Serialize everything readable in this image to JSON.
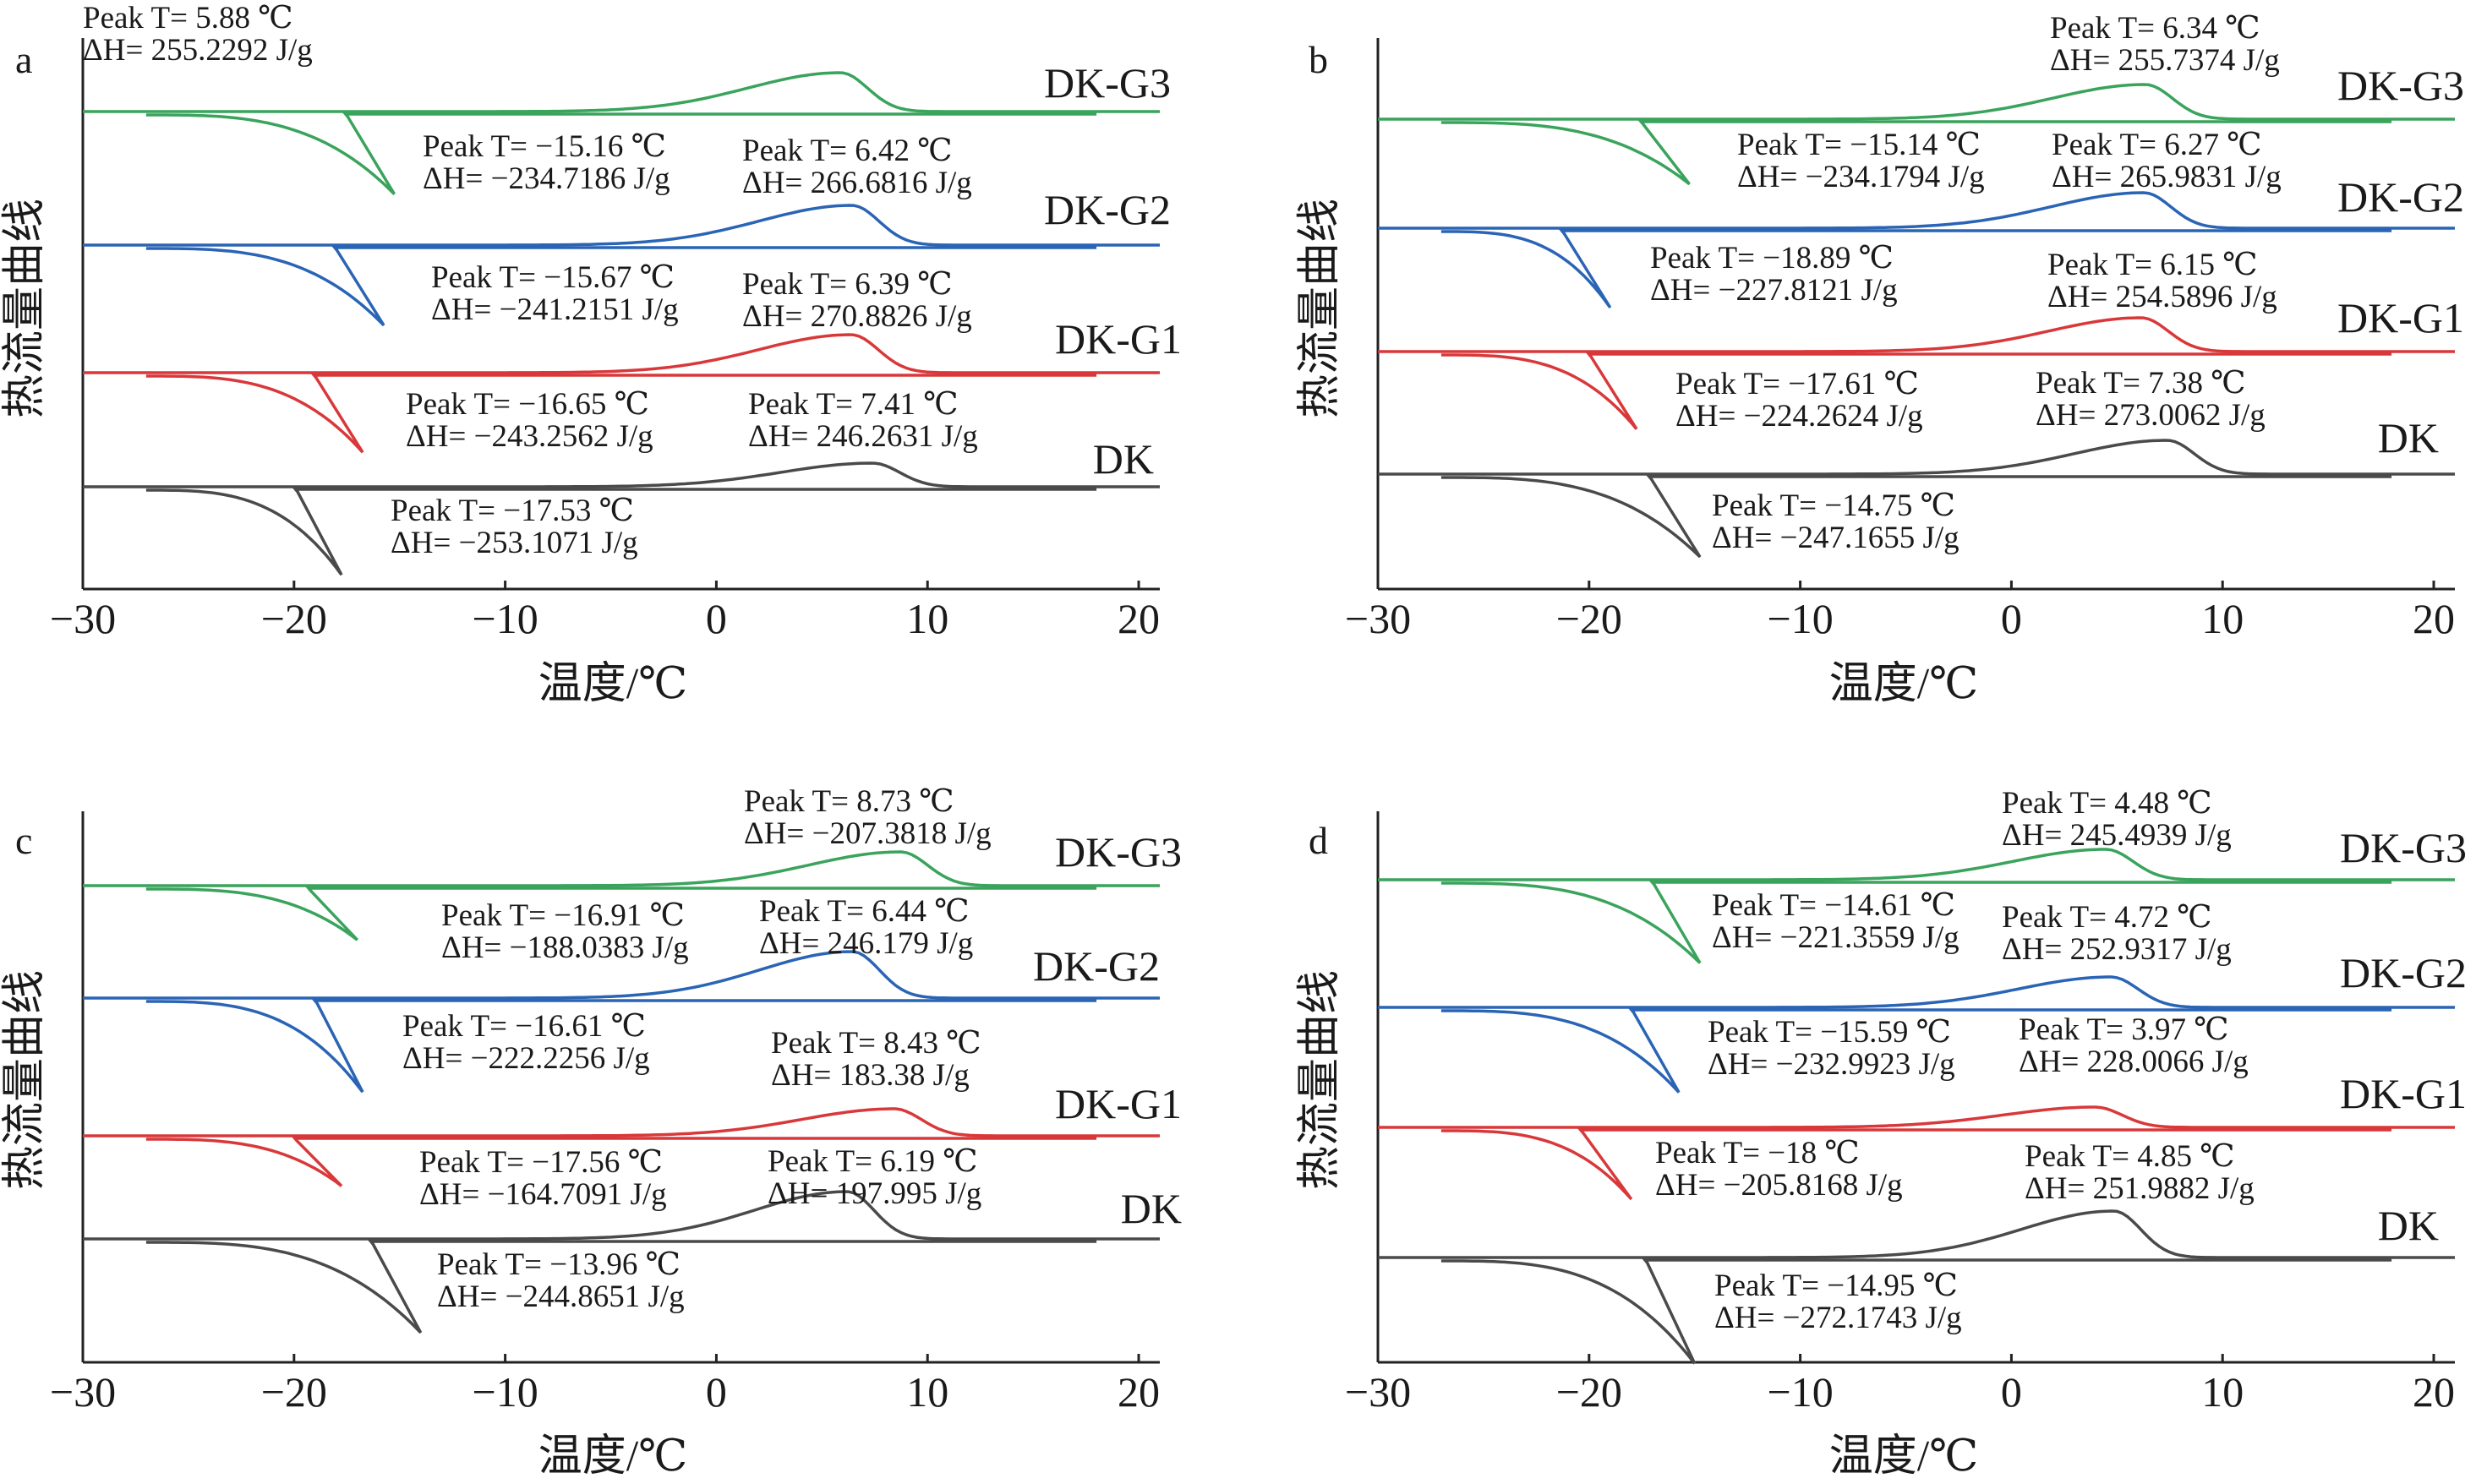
{
  "chart_data": [
    {
      "panel": "a",
      "type": "line",
      "xlabel": "温度/℃",
      "ylabel": "热流量曲线",
      "xlim": [
        -30,
        21
      ],
      "xticks": [
        "−30",
        "−20",
        "−10",
        "0",
        "10",
        "20"
      ],
      "grid": false,
      "series": [
        {
          "name": "DK-G3",
          "color": "#3aa35c",
          "exo": {
            "peak_T": 5.88,
            "label1": "Peak T= 5.88 ℃",
            "label2": "ΔH= 255.2292 J/g"
          },
          "endo": {
            "peak_T": -15.16,
            "label1": "Peak T= −15.16 ℃",
            "label2": "ΔH= −234.7186 J/g"
          }
        },
        {
          "name": "DK-G2",
          "color": "#2a64b5",
          "exo": {
            "peak_T": 6.42,
            "label1": "Peak T= 6.42 ℃",
            "label2": "ΔH= 266.6816 J/g"
          },
          "endo": {
            "peak_T": -15.67,
            "label1": "Peak T= −15.67 ℃",
            "label2": "ΔH= −241.2151 J/g"
          }
        },
        {
          "name": "DK-G1",
          "color": "#d9383a",
          "exo": {
            "peak_T": 6.39,
            "label1": "Peak T= 6.39 ℃",
            "label2": "ΔH= 270.8826 J/g"
          },
          "endo": {
            "peak_T": -16.65,
            "label1": "Peak T= −16.65 ℃",
            "label2": "ΔH= −243.2562 J/g"
          }
        },
        {
          "name": "DK",
          "color": "#4a4a4a",
          "exo": {
            "peak_T": 7.41,
            "label1": "Peak T= 7.41 ℃",
            "label2": "ΔH= 246.2631 J/g"
          },
          "endo": {
            "peak_T": -17.53,
            "label1": "Peak T= −17.53 ℃",
            "label2": "ΔH= −253.1071 J/g"
          }
        }
      ]
    },
    {
      "panel": "b",
      "type": "line",
      "xlabel": "温度/℃",
      "ylabel": "热流量曲线",
      "xlim": [
        -30,
        21
      ],
      "xticks": [
        "−30",
        "−20",
        "−10",
        "0",
        "10",
        "20"
      ],
      "grid": false,
      "series": [
        {
          "name": "DK-G3",
          "color": "#3aa35c",
          "exo": {
            "peak_T": 6.34,
            "label1": "Peak T= 6.34 ℃",
            "label2": "ΔH= 255.7374 J/g"
          },
          "endo": {
            "peak_T": -15.14,
            "label1": "Peak T= −15.14 ℃",
            "label2": "ΔH= −234.1794 J/g"
          }
        },
        {
          "name": "DK-G2",
          "color": "#2a64b5",
          "exo": {
            "peak_T": 6.27,
            "label1": "Peak T= 6.27 ℃",
            "label2": "ΔH= 265.9831 J/g"
          },
          "endo": {
            "peak_T": -18.89,
            "label1": "Peak T= −18.89 ℃",
            "label2": "ΔH= −227.8121 J/g"
          }
        },
        {
          "name": "DK-G1",
          "color": "#d9383a",
          "exo": {
            "peak_T": 6.15,
            "label1": "Peak T= 6.15 ℃",
            "label2": "ΔH= 254.5896 J/g"
          },
          "endo": {
            "peak_T": -17.61,
            "label1": "Peak T= −17.61 ℃",
            "label2": "ΔH= −224.2624 J/g"
          }
        },
        {
          "name": "DK",
          "color": "#4a4a4a",
          "exo": {
            "peak_T": 7.38,
            "label1": "Peak T= 7.38 ℃",
            "label2": "ΔH= 273.0062 J/g"
          },
          "endo": {
            "peak_T": -14.75,
            "label1": "Peak T= −14.75 ℃",
            "label2": "ΔH= −247.1655 J/g"
          }
        }
      ]
    },
    {
      "panel": "c",
      "type": "line",
      "xlabel": "温度/℃",
      "ylabel": "热流量曲线",
      "xlim": [
        -30,
        21
      ],
      "xticks": [
        "−30",
        "−20",
        "−10",
        "0",
        "10",
        "20"
      ],
      "grid": false,
      "series": [
        {
          "name": "DK-G3",
          "color": "#3aa35c",
          "exo": {
            "peak_T": 8.73,
            "label1": "Peak T= 8.73 ℃",
            "label2": "ΔH= −207.3818 J/g"
          },
          "endo": {
            "peak_T": -16.91,
            "label1": "Peak T= −16.91 ℃",
            "label2": "ΔH= −188.0383 J/g"
          }
        },
        {
          "name": "DK-G2",
          "color": "#2a64b5",
          "exo": {
            "peak_T": 6.44,
            "label1": "Peak T= 6.44 ℃",
            "label2": "ΔH= 246.179 J/g"
          },
          "endo": {
            "peak_T": -16.61,
            "label1": "Peak T= −16.61 ℃",
            "label2": "ΔH= −222.2256 J/g"
          }
        },
        {
          "name": "DK-G1",
          "color": "#d9383a",
          "exo": {
            "peak_T": 8.43,
            "label1": "Peak T= 8.43 ℃",
            "label2": "ΔH= 183.38 J/g"
          },
          "endo": {
            "peak_T": -17.56,
            "label1": "Peak T= −17.56 ℃",
            "label2": "ΔH= −164.7091 J/g"
          }
        },
        {
          "name": "DK",
          "color": "#4a4a4a",
          "exo": {
            "peak_T": 6.19,
            "label1": "Peak T= 6.19 ℃",
            "label2": "ΔH= 197.995 J/g"
          },
          "endo": {
            "peak_T": -13.96,
            "label1": "Peak T= −13.96 ℃",
            "label2": "ΔH= −244.8651 J/g"
          }
        }
      ]
    },
    {
      "panel": "d",
      "type": "line",
      "xlabel": "温度/℃",
      "ylabel": "热流量曲线",
      "xlim": [
        -30,
        21
      ],
      "xticks": [
        "−30",
        "−20",
        "−10",
        "0",
        "10",
        "20"
      ],
      "grid": false,
      "series": [
        {
          "name": "DK-G3",
          "color": "#3aa35c",
          "exo": {
            "peak_T": 4.48,
            "label1": "Peak T= 4.48 ℃",
            "label2": "ΔH= 245.4939 J/g"
          },
          "endo": {
            "peak_T": -14.61,
            "label1": "Peak T= −14.61 ℃",
            "label2": "ΔH= −221.3559 J/g"
          }
        },
        {
          "name": "DK-G2",
          "color": "#2a64b5",
          "exo": {
            "peak_T": 4.72,
            "label1": "Peak T= 4.72 ℃",
            "label2": "ΔH= 252.9317 J/g"
          },
          "endo": {
            "peak_T": -15.59,
            "label1": "Peak T= −15.59 ℃",
            "label2": "ΔH= −232.9923 J/g"
          }
        },
        {
          "name": "DK-G1",
          "color": "#d9383a",
          "exo": {
            "peak_T": 3.97,
            "label1": "Peak T= 3.97 ℃",
            "label2": "ΔH= 228.0066 J/g"
          },
          "endo": {
            "peak_T": -18,
            "label1": "Peak T= −18 ℃",
            "label2": "ΔH= −205.8168 J/g"
          }
        },
        {
          "name": "DK",
          "color": "#4a4a4a",
          "exo": {
            "peak_T": 4.85,
            "label1": "Peak T= 4.85 ℃",
            "label2": "ΔH= 251.9882 J/g"
          },
          "endo": {
            "peak_T": -14.95,
            "label1": "Peak T= −14.95 ℃",
            "label2": "ΔH= −272.1743 J/g"
          }
        }
      ]
    }
  ]
}
